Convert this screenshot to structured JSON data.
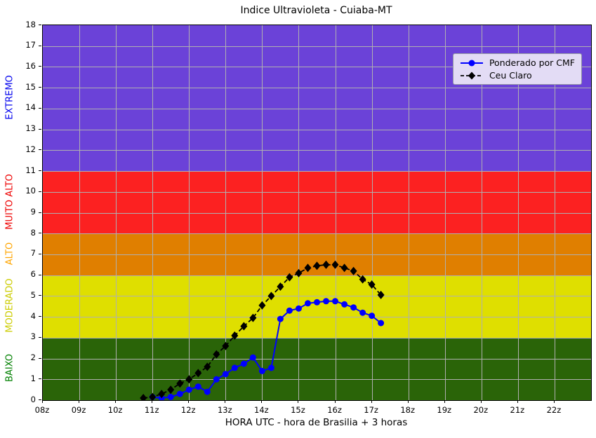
{
  "title": "Indice Ultravioleta - Cuiaba-MT",
  "xlabel": "HORA UTC - hora de Brasilia + 3 horas",
  "colors": {
    "background": "#ffffff",
    "grid": "#b0b0b0",
    "legend_bg": "#e3dcf5",
    "ponderado_line": "#0000ff",
    "ceu_claro_line": "#000000"
  },
  "chart_data": {
    "type": "line",
    "title": "Indice Ultravioleta - Cuiaba-MT",
    "xlabel": "HORA UTC - hora de Brasilia + 3 horas",
    "ylabel": "",
    "xlim": [
      8,
      23
    ],
    "ylim": [
      0,
      18
    ],
    "grid": true,
    "legend_position": "top-right",
    "xtick_values": [
      8,
      9,
      10,
      11,
      12,
      13,
      14,
      15,
      16,
      17,
      18,
      19,
      20,
      21,
      22
    ],
    "xtick_labels": [
      "08z",
      "09z",
      "10z",
      "11z",
      "12z",
      "13z",
      "14z",
      "15z",
      "16z",
      "17z",
      "18z",
      "19z",
      "20z",
      "21z",
      "22z"
    ],
    "ytick_values": [
      0,
      1,
      2,
      3,
      4,
      5,
      6,
      7,
      8,
      9,
      10,
      11,
      12,
      13,
      14,
      15,
      16,
      17,
      18
    ],
    "bands": [
      {
        "label": "BAIXO",
        "from": 0,
        "to": 3,
        "color": "#2a6408",
        "label_color": "#008000"
      },
      {
        "label": "MODERADO",
        "from": 3,
        "to": 6,
        "color": "#dfdf00",
        "label_color": "#cccc00"
      },
      {
        "label": "ALTO",
        "from": 6,
        "to": 8,
        "color": "#e07f00",
        "label_color": "#ffa500"
      },
      {
        "label": "MUITO ALTO",
        "from": 8,
        "to": 11,
        "color": "#fc2121",
        "label_color": "#ee0000"
      },
      {
        "label": "EXTREMO",
        "from": 11,
        "to": 18,
        "color": "#6b42d8",
        "label_color": "#0000ee"
      }
    ],
    "series": [
      {
        "name": "Ponderado por CMF",
        "color": "#0000ff",
        "marker": "circle",
        "line": "solid",
        "x": [
          11.0,
          11.25,
          11.5,
          11.75,
          12.0,
          12.25,
          12.5,
          12.75,
          13.0,
          13.25,
          13.5,
          13.75,
          14.0,
          14.25,
          14.5,
          14.75,
          15.0,
          15.25,
          15.5,
          15.75,
          16.0,
          16.25,
          16.5,
          16.75,
          17.0,
          17.25
        ],
        "y": [
          0.15,
          0.1,
          0.15,
          0.3,
          0.5,
          0.65,
          0.4,
          1.0,
          1.25,
          1.55,
          1.75,
          2.05,
          1.4,
          1.55,
          3.9,
          4.3,
          4.4,
          4.65,
          4.7,
          4.75,
          4.75,
          4.6,
          4.45,
          4.2,
          4.05,
          3.7
        ]
      },
      {
        "name": "Ceu Claro",
        "color": "#000000",
        "marker": "diamond",
        "line": "dashed",
        "x": [
          10.75,
          11.0,
          11.25,
          11.5,
          11.75,
          12.0,
          12.25,
          12.5,
          12.75,
          13.0,
          13.25,
          13.5,
          13.75,
          14.0,
          14.25,
          14.5,
          14.75,
          15.0,
          15.25,
          15.5,
          15.75,
          16.0,
          16.25,
          16.5,
          16.75,
          17.0,
          17.25
        ],
        "y": [
          0.1,
          0.15,
          0.3,
          0.5,
          0.8,
          1.0,
          1.3,
          1.6,
          2.2,
          2.6,
          3.1,
          3.55,
          3.95,
          4.55,
          5.0,
          5.45,
          5.9,
          6.1,
          6.35,
          6.45,
          6.5,
          6.5,
          6.35,
          6.2,
          5.8,
          5.55,
          5.05
        ]
      }
    ]
  }
}
